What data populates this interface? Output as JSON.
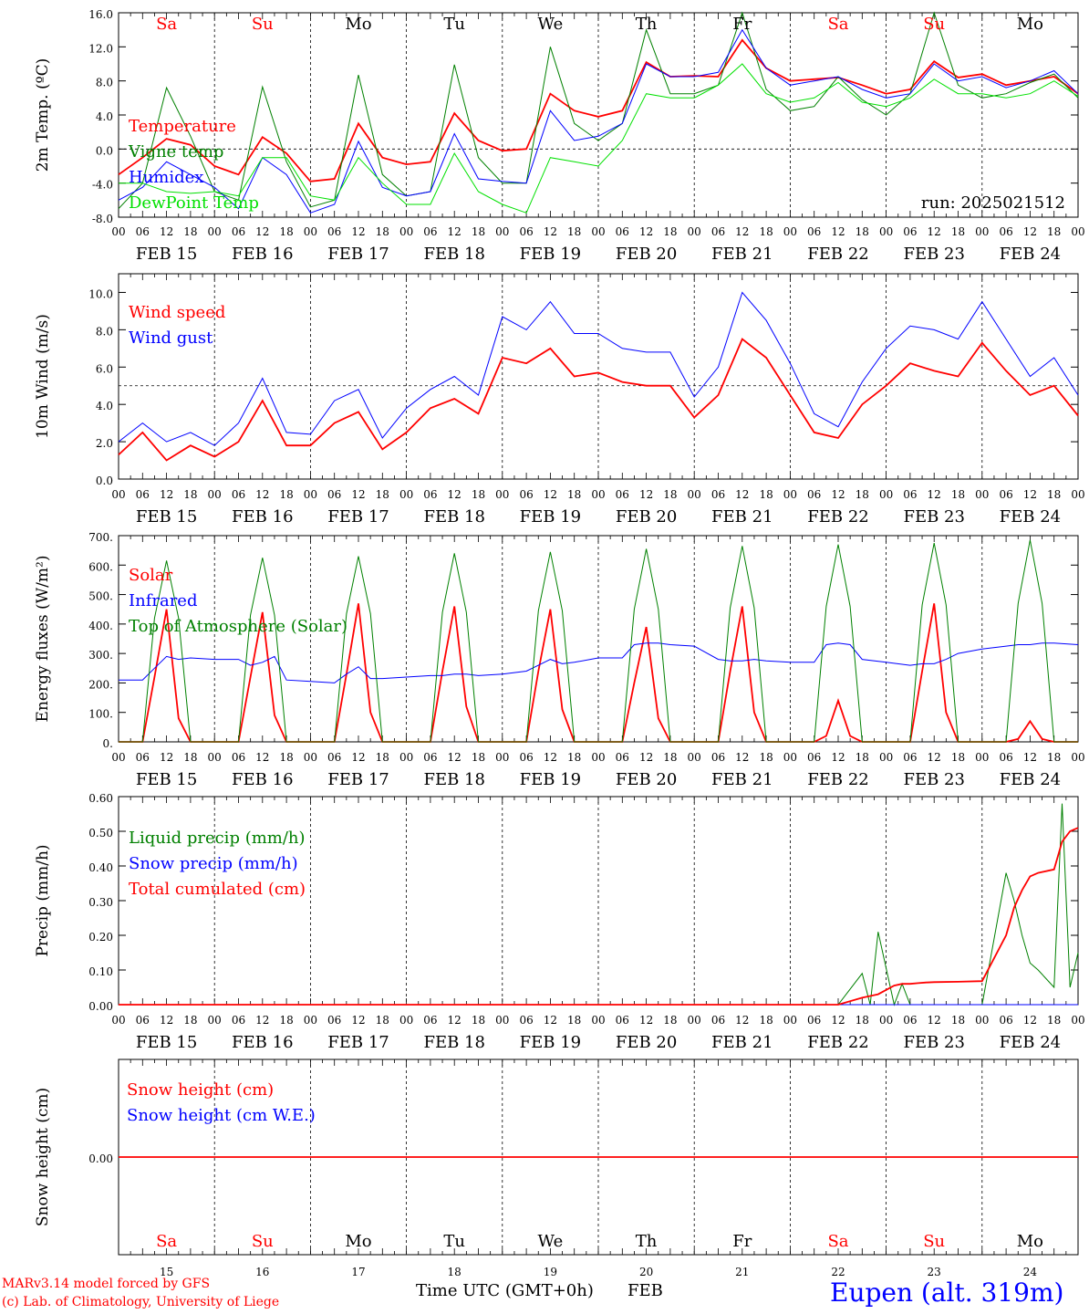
{
  "chart_data": [
    {
      "type": "line",
      "ylabel": "2m Temp. (ºC)",
      "ylim": [
        -8,
        16
      ],
      "ytick_labels": [
        "16.0",
        "12.0",
        "8.0",
        "4.0",
        "0.0",
        "-4.0",
        "-8.0"
      ],
      "reference_line": 0,
      "annotation": "run: 2025021512",
      "x_hours": [
        0,
        6,
        12,
        18,
        24,
        30,
        36,
        42,
        48,
        54,
        60,
        66,
        72,
        78,
        84,
        90,
        96,
        102,
        108,
        114,
        120,
        126,
        132,
        138,
        144,
        150,
        156,
        162,
        168,
        174,
        180,
        186,
        192,
        198,
        204,
        210,
        216,
        222,
        228,
        234,
        240
      ],
      "series": [
        {
          "name": "Temperature",
          "color": "#ff0000",
          "values": [
            -3,
            -1,
            1.2,
            0.5,
            -2,
            -3,
            1.4,
            -0.5,
            -3.8,
            -3.5,
            3,
            -1,
            -1.8,
            -1.5,
            4.2,
            1,
            -0.2,
            0,
            6.5,
            4.5,
            3.8,
            4.5,
            10.2,
            8.5,
            8.6,
            8.5,
            12.8,
            9.5,
            8.0,
            8.2,
            8.4,
            7.5,
            6.5,
            7,
            10.3,
            8.4,
            8.8,
            7.5,
            8.0,
            8.5,
            6.5
          ]
        },
        {
          "name": "Vigne temp",
          "color": "#008000",
          "values": [
            -7,
            -4,
            7.2,
            1.5,
            -5,
            -6,
            7.3,
            -1.5,
            -6.8,
            -6,
            8.7,
            -3,
            -5.5,
            -5,
            9.9,
            -1,
            -4,
            -4,
            12,
            3,
            1,
            3,
            14,
            6.5,
            6.5,
            7.5,
            16,
            7,
            4.5,
            5,
            8.5,
            5.8,
            4,
            6.5,
            16,
            7.5,
            6,
            6.5,
            7.8,
            8.8,
            6
          ]
        },
        {
          "name": "Humidex",
          "color": "#0000ff",
          "values": [
            -6,
            -4.5,
            -1.5,
            -3,
            -4.5,
            -7,
            -1,
            -3,
            -7.5,
            -6.5,
            0.9,
            -4.5,
            -5.5,
            -5,
            1.8,
            -3.5,
            -3.8,
            -4,
            4.5,
            1,
            1.5,
            3,
            10,
            8.5,
            8.5,
            9,
            14,
            9.5,
            7.5,
            8,
            8.5,
            7,
            6,
            6.5,
            10,
            8,
            8.5,
            7.2,
            8,
            9.2,
            6.5
          ]
        },
        {
          "name": "DewPoint Temp",
          "color": "#00e000",
          "values": [
            -4,
            -4,
            -5,
            -5.2,
            -5,
            -5.5,
            -1,
            -1,
            -5.5,
            -6,
            -1,
            -4,
            -6.5,
            -6.5,
            -0.5,
            -5,
            -6.5,
            -7.5,
            -1,
            -1.5,
            -2,
            1,
            6.5,
            6,
            6,
            7.5,
            10,
            6.5,
            5.5,
            6,
            7.8,
            5.5,
            5,
            6,
            8.2,
            6.5,
            6.5,
            6,
            6.5,
            8,
            6.2
          ]
        }
      ]
    },
    {
      "type": "line",
      "ylabel": "10m Wind (m/s)",
      "ylim": [
        0,
        11
      ],
      "ytick_labels": [
        "10.0",
        "8.0",
        "6.0",
        "4.0",
        "2.0",
        "0.0"
      ],
      "reference_line": 5,
      "x_hours": [
        0,
        6,
        12,
        18,
        24,
        30,
        36,
        42,
        48,
        54,
        60,
        66,
        72,
        78,
        84,
        90,
        96,
        102,
        108,
        114,
        120,
        126,
        132,
        138,
        144,
        150,
        156,
        162,
        168,
        174,
        180,
        186,
        192,
        198,
        204,
        210,
        216,
        222,
        228,
        234,
        240
      ],
      "series": [
        {
          "name": "Wind speed",
          "color": "#ff0000",
          "values": [
            1.3,
            2.5,
            1.0,
            1.8,
            1.2,
            2.0,
            4.2,
            1.8,
            1.8,
            3.0,
            3.6,
            1.6,
            2.5,
            3.8,
            4.3,
            3.5,
            6.5,
            6.2,
            7.0,
            5.5,
            5.7,
            5.2,
            5.0,
            5.0,
            3.3,
            4.5,
            7.5,
            6.5,
            4.5,
            2.5,
            2.2,
            4.0,
            5.0,
            6.2,
            5.8,
            5.5,
            7.3,
            5.8,
            4.5,
            5.0,
            3.4
          ]
        },
        {
          "name": "Wind gust",
          "color": "#0000ff",
          "values": [
            2.0,
            3.0,
            2.0,
            2.5,
            1.8,
            3.0,
            5.4,
            2.5,
            2.4,
            4.2,
            4.8,
            2.2,
            3.8,
            4.8,
            5.5,
            4.5,
            8.7,
            8.0,
            9.5,
            7.8,
            7.8,
            7.0,
            6.8,
            6.8,
            4.4,
            6.0,
            10.0,
            8.5,
            6.2,
            3.5,
            2.8,
            5.2,
            7.0,
            8.2,
            8.0,
            7.5,
            9.5,
            7.5,
            5.5,
            6.5,
            4.5
          ]
        }
      ]
    },
    {
      "type": "line",
      "ylabel": "Energy fluxes (W/m²)",
      "ylim": [
        0,
        700
      ],
      "ytick_labels": [
        "700.",
        "600.",
        "500.",
        "400.",
        "300.",
        "200.",
        "100.",
        "0."
      ],
      "x_hours": [
        0,
        6,
        9,
        12,
        15,
        18,
        24,
        30,
        33,
        36,
        39,
        42,
        48,
        54,
        57,
        60,
        63,
        66,
        72,
        78,
        81,
        84,
        87,
        90,
        96,
        102,
        105,
        108,
        111,
        114,
        120,
        126,
        129,
        132,
        135,
        138,
        144,
        150,
        153,
        156,
        159,
        162,
        168,
        174,
        177,
        180,
        183,
        186,
        192,
        198,
        201,
        204,
        207,
        210,
        216,
        222,
        225,
        228,
        231,
        234,
        240
      ],
      "series": [
        {
          "name": "Solar",
          "color": "#ff0000",
          "values": [
            0,
            0,
            220,
            450,
            80,
            0,
            0,
            0,
            220,
            440,
            90,
            0,
            0,
            0,
            230,
            470,
            100,
            0,
            0,
            0,
            240,
            460,
            120,
            0,
            0,
            0,
            240,
            450,
            110,
            0,
            0,
            0,
            200,
            390,
            80,
            0,
            0,
            0,
            240,
            460,
            100,
            0,
            0,
            0,
            20,
            140,
            20,
            0,
            0,
            0,
            240,
            470,
            100,
            0,
            0,
            0,
            10,
            70,
            10,
            0,
            0
          ]
        },
        {
          "name": "Infrared",
          "color": "#0000ff",
          "values": [
            210,
            210,
            250,
            290,
            280,
            285,
            280,
            280,
            260,
            270,
            290,
            210,
            205,
            200,
            230,
            255,
            215,
            215,
            220,
            225,
            225,
            230,
            230,
            225,
            230,
            240,
            260,
            280,
            265,
            270,
            285,
            285,
            330,
            335,
            335,
            330,
            325,
            280,
            275,
            275,
            280,
            275,
            270,
            270,
            330,
            335,
            330,
            280,
            270,
            260,
            265,
            265,
            280,
            300,
            315,
            325,
            330,
            330,
            335,
            335,
            330
          ]
        },
        {
          "name": "Top of Atmosphere (Solar)",
          "color": "#008000",
          "values": [
            0,
            0,
            420,
            615,
            420,
            0,
            0,
            0,
            430,
            625,
            430,
            0,
            0,
            0,
            435,
            630,
            435,
            0,
            0,
            0,
            440,
            640,
            440,
            0,
            0,
            0,
            445,
            645,
            445,
            0,
            0,
            0,
            450,
            655,
            450,
            0,
            0,
            0,
            455,
            665,
            455,
            0,
            0,
            0,
            460,
            670,
            460,
            0,
            0,
            0,
            465,
            675,
            465,
            0,
            0,
            0,
            470,
            685,
            470,
            0,
            0
          ]
        }
      ]
    },
    {
      "type": "line",
      "ylabel": "Precip (mm/h)",
      "ylim": [
        0,
        0.6
      ],
      "ytick_labels": [
        "0.60",
        "0.50",
        "0.40",
        "0.30",
        "0.20",
        "0.10",
        "0.00"
      ],
      "x_hours": [
        0,
        24,
        48,
        72,
        96,
        120,
        144,
        168,
        180,
        186,
        188,
        190,
        194,
        196,
        198,
        200,
        202,
        204,
        210,
        216,
        222,
        224,
        226,
        228,
        230,
        234,
        236,
        238,
        240
      ],
      "series": [
        {
          "name": "Liquid precip (mm/h)",
          "color": "#008000",
          "values": [
            0,
            0,
            0,
            0,
            0,
            0,
            0,
            0,
            0,
            0.09,
            0,
            0.21,
            0,
            0.06,
            0,
            0,
            0,
            0,
            0,
            0,
            0.38,
            0.3,
            0.2,
            0.12,
            0.1,
            0.05,
            0.58,
            0.05,
            0.15
          ]
        },
        {
          "name": "Snow precip (mm/h)",
          "color": "#0000ff",
          "values": [
            0,
            0,
            0,
            0,
            0,
            0,
            0,
            0,
            0,
            0,
            0,
            0,
            0,
            0,
            0,
            0,
            0,
            0,
            0,
            0,
            0,
            0,
            0,
            0,
            0,
            0,
            0,
            0,
            0
          ]
        },
        {
          "name": "Total cumulated (cm)",
          "color": "#ff0000",
          "values": [
            0,
            0,
            0,
            0,
            0,
            0,
            0,
            0,
            0,
            0.02,
            0.025,
            0.03,
            0.055,
            0.06,
            0.06,
            0.062,
            0.064,
            0.065,
            0.066,
            0.068,
            0.2,
            0.28,
            0.33,
            0.37,
            0.38,
            0.39,
            0.47,
            0.5,
            0.51
          ]
        }
      ]
    },
    {
      "type": "line",
      "ylabel": "Snow height (cm)",
      "ylim": [
        -1,
        1
      ],
      "ytick_labels": [
        "0.00"
      ],
      "x_hours": [
        0,
        240
      ],
      "series": [
        {
          "name": "Snow height (cm)",
          "color": "#ff0000",
          "values": [
            0,
            0
          ]
        },
        {
          "name": "Snow height (cm W.E.)",
          "color": "#0000ff",
          "values": []
        }
      ]
    }
  ],
  "axis": {
    "hour_labels": [
      "00",
      "06",
      "12",
      "18"
    ],
    "final_hour_label": "00",
    "dates": [
      "FEB 15",
      "FEB 16",
      "FEB 17",
      "FEB 18",
      "FEB 19",
      "FEB 20",
      "FEB 21",
      "FEB 22",
      "FEB 23",
      "FEB 24"
    ],
    "day_numbers": [
      "15",
      "16",
      "17",
      "18",
      "19",
      "20",
      "21",
      "22",
      "23",
      "24"
    ],
    "weekdays": [
      {
        "label": "Sa",
        "color": "#ff0000"
      },
      {
        "label": "Su",
        "color": "#ff0000"
      },
      {
        "label": "Mo",
        "color": "#000000"
      },
      {
        "label": "Tu",
        "color": "#000000"
      },
      {
        "label": "We",
        "color": "#000000"
      },
      {
        "label": "Th",
        "color": "#000000"
      },
      {
        "label": "Fr",
        "color": "#000000"
      },
      {
        "label": "Sa",
        "color": "#ff0000"
      },
      {
        "label": "Su",
        "color": "#ff0000"
      },
      {
        "label": "Mo",
        "color": "#000000"
      }
    ],
    "xlabel": "Time UTC (GMT+0h)",
    "month": "FEB"
  },
  "footer": {
    "credit_1": "MARv3.14 model forced by GFS",
    "credit_2": "(c) Lab. of Climatology, University of Liege",
    "station": "Eupen (alt. 319m)"
  }
}
